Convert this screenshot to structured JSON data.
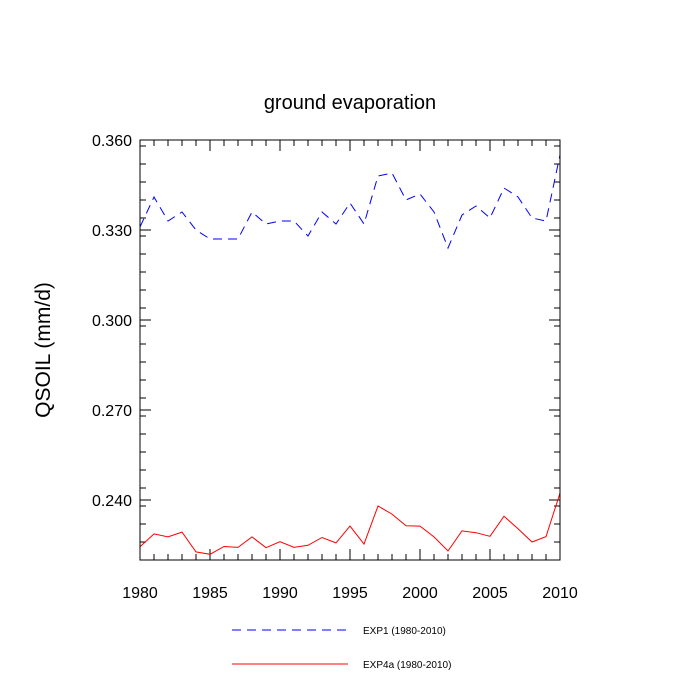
{
  "chart_data": {
    "type": "line",
    "title": "ground evaporation",
    "ylabel": "QSOIL  (mm/d)",
    "xlabel": "",
    "xlim": [
      1980,
      2010
    ],
    "ylim": [
      0.22,
      0.36
    ],
    "x_ticks": [
      1980,
      1985,
      1990,
      1995,
      2000,
      2005,
      2010
    ],
    "x_tick_labels": [
      "1980",
      "1985",
      "1990",
      "1995",
      "2000",
      "2005",
      "2010"
    ],
    "y_ticks": [
      0.24,
      0.27,
      0.3,
      0.33,
      0.36
    ],
    "y_tick_labels": [
      "0.240",
      "0.270",
      "0.300",
      "0.330",
      "0.360"
    ],
    "x_minor_step": 1,
    "y_minor_step": 0.006,
    "grid": false,
    "legend_position": "bottom",
    "x": [
      1980,
      1981,
      1982,
      1983,
      1984,
      1985,
      1986,
      1987,
      1988,
      1989,
      1990,
      1991,
      1992,
      1993,
      1994,
      1995,
      1996,
      1997,
      1998,
      1999,
      2000,
      2001,
      2002,
      2003,
      2004,
      2005,
      2006,
      2007,
      2008,
      2009,
      2010
    ],
    "series": [
      {
        "name": "EXP1 (1980-2010)",
        "color": "#0000ff",
        "dash": "dashed",
        "values": [
          0.331,
          0.341,
          0.333,
          0.336,
          0.33,
          0.327,
          0.327,
          0.327,
          0.336,
          0.332,
          0.333,
          0.333,
          0.328,
          0.336,
          0.332,
          0.339,
          0.332,
          0.348,
          0.349,
          0.34,
          0.342,
          0.336,
          0.324,
          0.335,
          0.338,
          0.334,
          0.344,
          0.341,
          0.334,
          0.333,
          0.355
        ]
      },
      {
        "name": "EXP4a (1980-2010)",
        "color": "#ff0000",
        "dash": "solid",
        "values": [
          0.2244,
          0.2287,
          0.2277,
          0.2293,
          0.2227,
          0.2219,
          0.2245,
          0.2242,
          0.2277,
          0.2241,
          0.2261,
          0.2242,
          0.2249,
          0.2275,
          0.2257,
          0.2313,
          0.2253,
          0.238,
          0.2353,
          0.2314,
          0.2313,
          0.2277,
          0.223,
          0.2297,
          0.2291,
          0.2279,
          0.2346,
          0.2304,
          0.226,
          0.2278,
          0.2423
        ]
      }
    ]
  }
}
